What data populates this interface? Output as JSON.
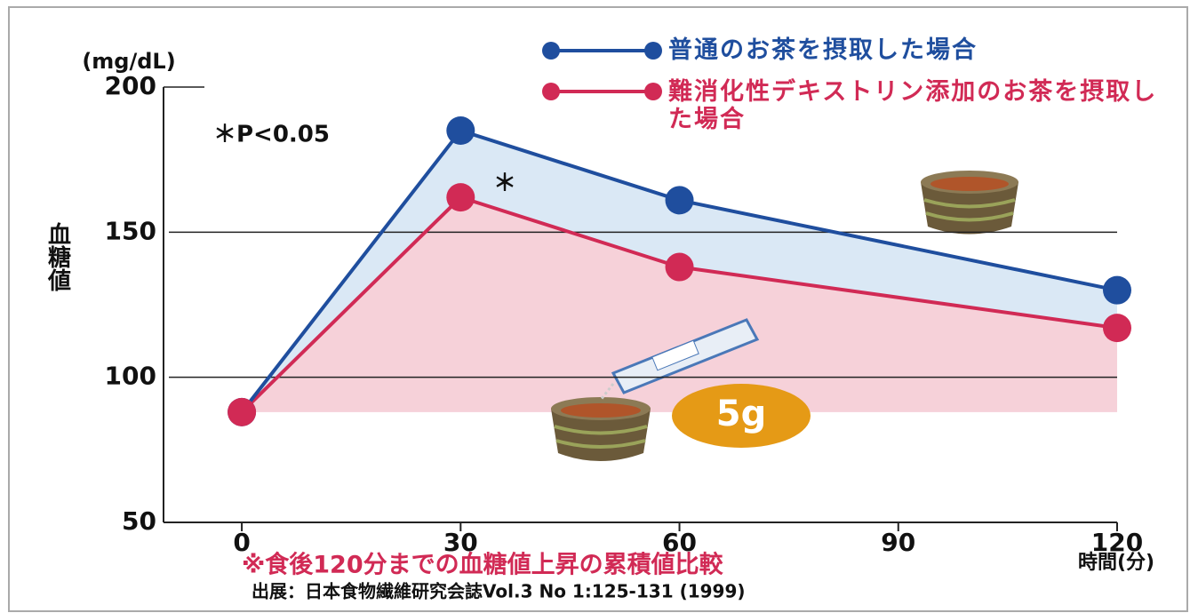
{
  "chart_data": {
    "type": "line",
    "y_unit": "(mg/dL)",
    "y_label": "血糖値",
    "x_label": "時間(分)",
    "x": [
      0,
      30,
      60,
      120
    ],
    "series": [
      {
        "name": "普通のお茶を摂取した場合",
        "color": "#1f4e9e",
        "values": [
          88,
          185,
          161,
          130
        ]
      },
      {
        "name": "難消化性デキストリン添加のお茶を摂取した場合",
        "color": "#d12a55",
        "values": [
          88,
          162,
          138,
          117
        ]
      }
    ],
    "xlim": [
      -10,
      120
    ],
    "xticks": [
      0,
      30,
      60,
      90,
      120
    ],
    "ylim": [
      50,
      200
    ],
    "yticks": [
      50,
      100,
      150,
      200
    ],
    "annotations": [
      "＊P<0.05",
      "＊",
      "5g"
    ],
    "footnote": "※食後120分までの血糖値上昇の累積値比較",
    "source": "出展：日本食物繊維研究会誌Vol.3 No 1:125-131 (1999)"
  }
}
